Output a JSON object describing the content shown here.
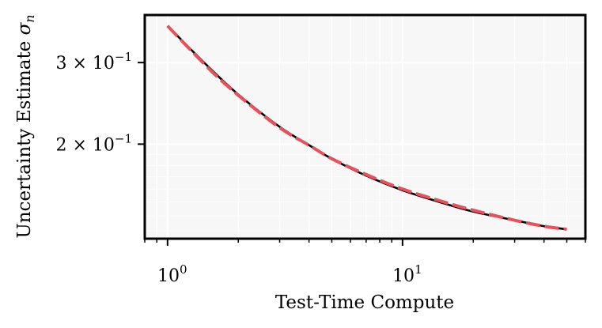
{
  "chart_data": {
    "type": "line",
    "title": "",
    "xlabel": "Test-Time Compute",
    "ylabel": "Uncertainty Estimate σn",
    "ylabel_parts": {
      "text": "Uncertainty Estimate ",
      "symbol": "σ",
      "subscript": "n"
    },
    "xscale": "log",
    "yscale": "log",
    "xlim": [
      0.8,
      60
    ],
    "ylim": [
      0.125,
      0.38
    ],
    "grid": true,
    "legend": "none",
    "x_ticks": [
      {
        "value": 1,
        "base": "10",
        "exp": "0"
      },
      {
        "value": 10,
        "base": "10",
        "exp": "1"
      }
    ],
    "y_ticks": [
      {
        "value": 0.3,
        "mantissa": "3",
        "base": "10",
        "exp": "−1"
      },
      {
        "value": 0.2,
        "mantissa": "2",
        "base": "10",
        "exp": "−1"
      }
    ],
    "x": [
      1,
      1.5,
      2,
      3,
      4,
      5,
      7,
      10,
      15,
      20,
      30,
      40,
      50
    ],
    "series": [
      {
        "style": "solid",
        "color": "#000000",
        "values": [
          0.36,
          0.293,
          0.256,
          0.218,
          0.199,
          0.186,
          0.171,
          0.159,
          0.149,
          0.143,
          0.137,
          0.133,
          0.131
        ]
      },
      {
        "style": "dashed",
        "color": "#E8505B",
        "values": [
          0.36,
          0.291,
          0.255,
          0.217,
          0.199,
          0.186,
          0.172,
          0.16,
          0.15,
          0.144,
          0.137,
          0.133,
          0.131
        ]
      }
    ],
    "colors": {
      "background": "#F7F7F7",
      "grid": "#FFFFFF",
      "frame": "#000000"
    }
  }
}
